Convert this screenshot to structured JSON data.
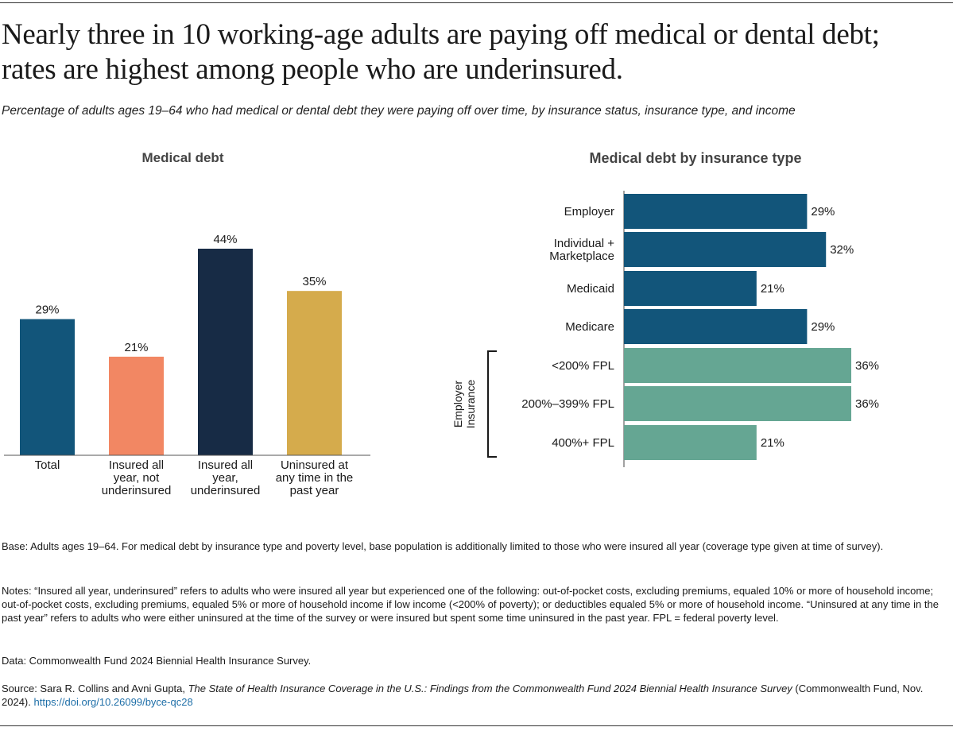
{
  "title_lines": [
    "Nearly three in 10 working-age adults are paying off medical or dental debt;",
    "rates are highest among people who are underinsured."
  ],
  "subtitle": "Percentage of adults ages 19–64 who had medical or dental debt they were paying off over time, by insurance status, insurance type, and income",
  "chart_data": [
    {
      "type": "bar",
      "title": "Medical debt",
      "categories": [
        [
          "Total"
        ],
        [
          "Insured all",
          "year, not",
          "underinsured"
        ],
        [
          "Insured all",
          "year,",
          "underinsured"
        ],
        [
          "Uninsured at",
          "any time in the",
          "past year"
        ]
      ],
      "values": [
        29,
        21,
        44,
        35
      ],
      "value_labels": [
        "29%",
        "21%",
        "44%",
        "35%"
      ],
      "colors": [
        "#12557a",
        "#f28763",
        "#172b45",
        "#d5ab4c"
      ],
      "ylim": [
        0,
        50
      ],
      "xlabel": "",
      "ylabel": ""
    },
    {
      "type": "bar",
      "orientation": "horizontal",
      "title": "Medical debt by insurance type",
      "categories": [
        [
          "Employer"
        ],
        [
          "Individual +",
          "Marketplace"
        ],
        [
          "Medicaid"
        ],
        [
          "Medicare"
        ],
        [
          "<200% FPL"
        ],
        [
          "200%–399% FPL"
        ],
        [
          "400%+ FPL"
        ]
      ],
      "values": [
        29,
        32,
        21,
        29,
        36,
        36,
        21
      ],
      "value_labels": [
        "29%",
        "32%",
        "21%",
        "29%",
        "36%",
        "36%",
        "21%"
      ],
      "colors": [
        "#12557a",
        "#12557a",
        "#12557a",
        "#12557a",
        "#65a693",
        "#65a693",
        "#65a693"
      ],
      "group_label": [
        "Employer",
        "Insurance"
      ],
      "group_span": [
        4,
        6
      ],
      "xlim": [
        0,
        40
      ]
    }
  ],
  "notes": {
    "base": "Base: Adults ages 19–64. For medical debt by insurance type and poverty level, base population is additionally limited to those who were insured all year (coverage type given at time of survey).",
    "notes": "Notes: “Insured all year, underinsured” refers to adults who were insured all year but experienced one of the following: out-of-pocket costs, excluding premiums, equaled 10% or more of household income; out-of-pocket costs, excluding premiums, equaled 5% or more of household income if low income (<200% of poverty); or deductibles equaled 5% or more of household income. “Uninsured at any time in the past year” refers to adults who were either uninsured at the time of the survey or were insured but spent some time uninsured in the past year. FPL = federal poverty level.",
    "data": "Data: Commonwealth Fund 2024 Biennial Health Insurance Survey.",
    "source_prefix": "Source: Sara R. Collins and Avni Gupta, ",
    "source_title": "The State of Health Insurance Coverage in the U.S.: Findings from the Commonwealth Fund 2024 Biennial Health Insurance Survey",
    "source_suffix": " (Commonwealth Fund, Nov. 2024). ",
    "source_link": "https://doi.org/10.26099/byce-qc28"
  }
}
